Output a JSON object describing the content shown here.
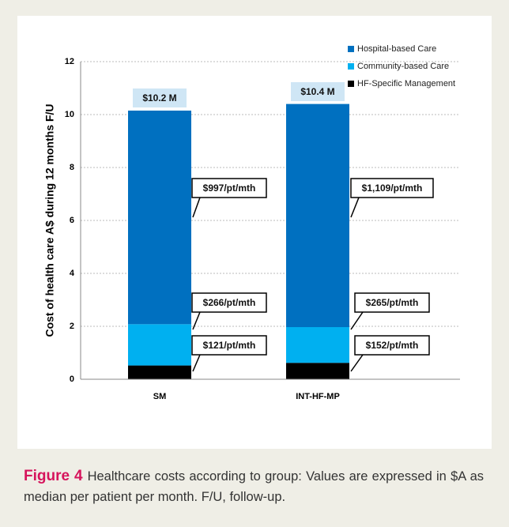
{
  "chart_data": {
    "type": "stacked_bar",
    "ylabel": "Cost of health care A$ during 12 months F/U",
    "categories": [
      "SM",
      "INT-HF-MP"
    ],
    "series": [
      {
        "name": "HF-Specific Management",
        "color": "#000000",
        "values": [
          0.52,
          0.62
        ]
      },
      {
        "name": "Community-based Care",
        "color": "#00b0f0",
        "values": [
          1.56,
          1.35
        ]
      },
      {
        "name": "Hospital-based Care",
        "color": "#0070c0",
        "values": [
          8.07,
          8.43
        ]
      }
    ],
    "ylim": [
      0,
      12
    ],
    "yticks": [
      0,
      2,
      4,
      6,
      8,
      10,
      12
    ],
    "grid": true,
    "legend": "upper right",
    "annotations": [
      {
        "text": "$10.2 M"
      },
      {
        "text": "$10.4 M"
      },
      {
        "text": "$997/pt/mth"
      },
      {
        "text": "$1,109/pt/mth"
      },
      {
        "text": "$266/pt/mth"
      },
      {
        "text": "$265/pt/mth"
      },
      {
        "text": "$121/pt/mth"
      },
      {
        "text": "$152/pt/mth"
      }
    ]
  },
  "caption": {
    "label": "Figure 4",
    "text": "Healthcare costs according to group: Values are expressed in $A as median per patient per month. F/U, follow-up."
  }
}
